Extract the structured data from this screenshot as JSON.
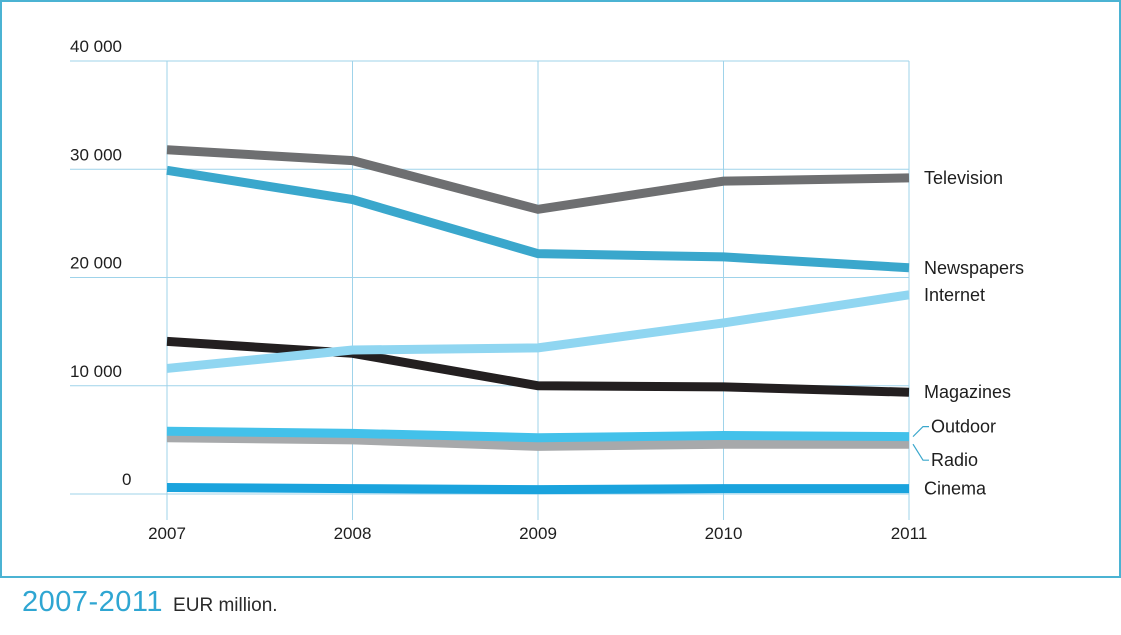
{
  "chart_data": {
    "type": "line",
    "title": "",
    "xlabel": "",
    "ylabel": "",
    "x": [
      "2007",
      "2008",
      "2009",
      "2010",
      "2011"
    ],
    "y_ticks": [
      "0",
      "10 000",
      "20 000",
      "30 000",
      "40 000"
    ],
    "ylim": [
      0,
      40000
    ],
    "grid": true,
    "legend": "inline-right",
    "series": [
      {
        "name": "Television",
        "color": "#6e6f71",
        "values": [
          31800,
          30800,
          26300,
          28900,
          29200
        ]
      },
      {
        "name": "Newspapers",
        "color": "#3aa7cc",
        "values": [
          29900,
          27200,
          22200,
          21900,
          20900
        ]
      },
      {
        "name": "Internet",
        "color": "#90d6f1",
        "values": [
          11600,
          13300,
          13500,
          15800,
          18400
        ]
      },
      {
        "name": "Magazines",
        "color": "#231f20",
        "values": [
          14100,
          13000,
          10000,
          9900,
          9400
        ]
      },
      {
        "name": "Outdoor",
        "color": "#43c1ea",
        "values": [
          5800,
          5600,
          5200,
          5400,
          5300
        ]
      },
      {
        "name": "Radio",
        "color": "#a7a9ab",
        "values": [
          5200,
          5000,
          4400,
          4600,
          4600
        ]
      },
      {
        "name": "Cinema",
        "color": "#1aa3dd",
        "values": [
          600,
          500,
          400,
          500,
          500
        ]
      }
    ]
  },
  "caption": {
    "period": "2007-2011",
    "unit": "EUR million."
  }
}
